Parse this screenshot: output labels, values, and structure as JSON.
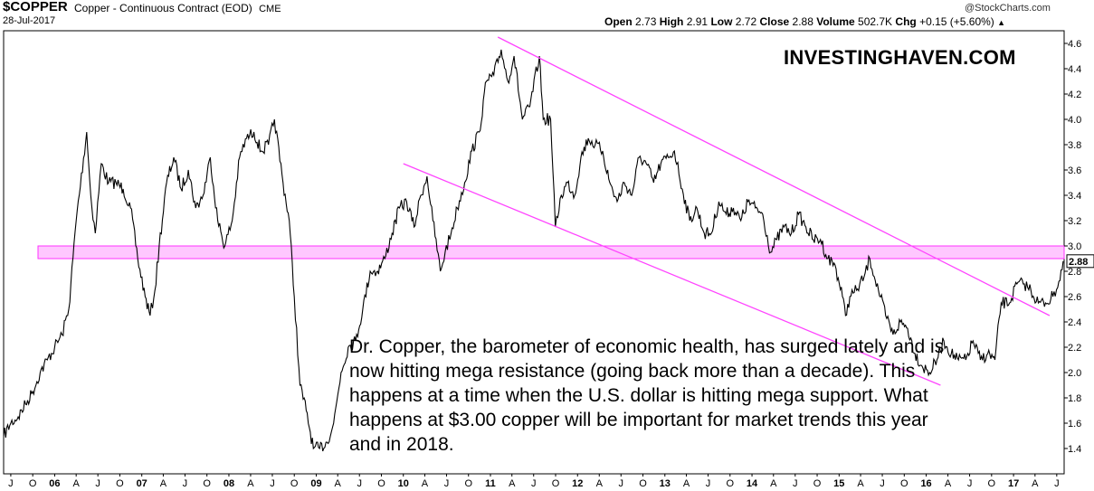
{
  "header": {
    "symbol": "$COPPER",
    "description": "Copper - Continuous Contract (EOD)",
    "exchange": "CME",
    "date": "28-Jul-2017",
    "credit": "@StockCharts.com",
    "quote": {
      "open_label": "Open",
      "open": "2.73",
      "high_label": "High",
      "high": "2.91",
      "low_label": "Low",
      "low": "2.72",
      "close_label": "Close",
      "close": "2.88",
      "volume_label": "Volume",
      "volume": "502.7K",
      "chg_label": "Chg",
      "chg": "+0.15 (+5.60%)",
      "arrow": "▲"
    }
  },
  "watermark": "INVESTINGHAVEN.COM",
  "annotation": "Dr. Copper, the barometer of economic health, has surged lately and is now hitting mega resistance (going back more than a decade). This happens at a time when the U.S. dollar is hitting mega support. What happens at $3.00 copper will be important for market trends this year and in 2018.",
  "chart_data": {
    "type": "line",
    "ylim": [
      1.2,
      4.7
    ],
    "xlim": [
      "2005-06-01",
      "2017-08-01"
    ],
    "y_ticks": [
      "1.4",
      "1.6",
      "1.8",
      "2.0",
      "2.2",
      "2.4",
      "2.6",
      "2.8",
      "3.0",
      "3.2",
      "3.4",
      "3.6",
      "3.8",
      "4.0",
      "4.2",
      "4.4",
      "4.6"
    ],
    "last_value_label": "2.88",
    "x_ticks": [
      {
        "label": "J",
        "date": "2005-07-01"
      },
      {
        "label": "O",
        "date": "2005-10-01"
      },
      {
        "label": "06",
        "date": "2006-01-01",
        "major": true
      },
      {
        "label": "A",
        "date": "2006-04-01"
      },
      {
        "label": "J",
        "date": "2006-07-01"
      },
      {
        "label": "O",
        "date": "2006-10-01"
      },
      {
        "label": "07",
        "date": "2007-01-01",
        "major": true
      },
      {
        "label": "A",
        "date": "2007-04-01"
      },
      {
        "label": "J",
        "date": "2007-07-01"
      },
      {
        "label": "O",
        "date": "2007-10-01"
      },
      {
        "label": "08",
        "date": "2008-01-01",
        "major": true
      },
      {
        "label": "A",
        "date": "2008-04-01"
      },
      {
        "label": "J",
        "date": "2008-07-01"
      },
      {
        "label": "O",
        "date": "2008-10-01"
      },
      {
        "label": "09",
        "date": "2009-01-01",
        "major": true
      },
      {
        "label": "A",
        "date": "2009-04-01"
      },
      {
        "label": "J",
        "date": "2009-07-01"
      },
      {
        "label": "O",
        "date": "2009-10-01"
      },
      {
        "label": "10",
        "date": "2010-01-01",
        "major": true
      },
      {
        "label": "A",
        "date": "2010-04-01"
      },
      {
        "label": "J",
        "date": "2010-07-01"
      },
      {
        "label": "O",
        "date": "2010-10-01"
      },
      {
        "label": "11",
        "date": "2011-01-01",
        "major": true
      },
      {
        "label": "A",
        "date": "2011-04-01"
      },
      {
        "label": "J",
        "date": "2011-07-01"
      },
      {
        "label": "O",
        "date": "2011-10-01"
      },
      {
        "label": "12",
        "date": "2012-01-01",
        "major": true
      },
      {
        "label": "A",
        "date": "2012-04-01"
      },
      {
        "label": "J",
        "date": "2012-07-01"
      },
      {
        "label": "O",
        "date": "2012-10-01"
      },
      {
        "label": "13",
        "date": "2013-01-01",
        "major": true
      },
      {
        "label": "A",
        "date": "2013-04-01"
      },
      {
        "label": "J",
        "date": "2013-07-01"
      },
      {
        "label": "O",
        "date": "2013-10-01"
      },
      {
        "label": "14",
        "date": "2014-01-01",
        "major": true
      },
      {
        "label": "A",
        "date": "2014-04-01"
      },
      {
        "label": "J",
        "date": "2014-07-01"
      },
      {
        "label": "O",
        "date": "2014-10-01"
      },
      {
        "label": "15",
        "date": "2015-01-01",
        "major": true
      },
      {
        "label": "A",
        "date": "2015-04-01"
      },
      {
        "label": "J",
        "date": "2015-07-01"
      },
      {
        "label": "O",
        "date": "2015-10-01"
      },
      {
        "label": "16",
        "date": "2016-01-01",
        "major": true
      },
      {
        "label": "A",
        "date": "2016-04-01"
      },
      {
        "label": "J",
        "date": "2016-07-01"
      },
      {
        "label": "O",
        "date": "2016-10-01"
      },
      {
        "label": "17",
        "date": "2017-01-01",
        "major": true
      },
      {
        "label": "A",
        "date": "2017-04-01"
      },
      {
        "label": "J",
        "date": "2017-07-01"
      }
    ],
    "series": [
      {
        "points": [
          [
            "2005-06-01",
            1.5
          ],
          [
            "2005-07-01",
            1.6
          ],
          [
            "2005-08-01",
            1.65
          ],
          [
            "2005-09-01",
            1.75
          ],
          [
            "2005-10-01",
            1.85
          ],
          [
            "2005-11-01",
            2.0
          ],
          [
            "2005-12-01",
            2.1
          ],
          [
            "2006-01-01",
            2.2
          ],
          [
            "2006-02-01",
            2.3
          ],
          [
            "2006-03-01",
            2.5
          ],
          [
            "2006-04-01",
            3.2
          ],
          [
            "2006-05-15",
            3.9
          ],
          [
            "2006-06-01",
            3.4
          ],
          [
            "2006-06-20",
            3.1
          ],
          [
            "2006-07-15",
            3.65
          ],
          [
            "2006-08-15",
            3.5
          ],
          [
            "2006-09-15",
            3.5
          ],
          [
            "2006-10-15",
            3.45
          ],
          [
            "2006-11-15",
            3.3
          ],
          [
            "2006-12-15",
            2.9
          ],
          [
            "2007-01-15",
            2.6
          ],
          [
            "2007-02-05",
            2.45
          ],
          [
            "2007-02-25",
            2.65
          ],
          [
            "2007-03-15",
            3.0
          ],
          [
            "2007-04-15",
            3.5
          ],
          [
            "2007-05-15",
            3.7
          ],
          [
            "2007-06-15",
            3.45
          ],
          [
            "2007-07-15",
            3.6
          ],
          [
            "2007-08-15",
            3.3
          ],
          [
            "2007-09-15",
            3.4
          ],
          [
            "2007-10-15",
            3.7
          ],
          [
            "2007-11-15",
            3.2
          ],
          [
            "2007-12-15",
            3.0
          ],
          [
            "2008-01-15",
            3.2
          ],
          [
            "2008-02-15",
            3.7
          ],
          [
            "2008-03-15",
            3.85
          ],
          [
            "2008-04-15",
            3.9
          ],
          [
            "2008-05-15",
            3.75
          ],
          [
            "2008-06-15",
            3.8
          ],
          [
            "2008-07-10",
            4.0
          ],
          [
            "2008-08-15",
            3.5
          ],
          [
            "2008-09-10",
            3.2
          ],
          [
            "2008-10-01",
            2.6
          ],
          [
            "2008-10-25",
            1.9
          ],
          [
            "2008-11-20",
            1.7
          ],
          [
            "2008-12-20",
            1.4
          ],
          [
            "2009-01-15",
            1.4
          ],
          [
            "2009-02-15",
            1.45
          ],
          [
            "2009-03-15",
            1.6
          ],
          [
            "2009-04-15",
            2.0
          ],
          [
            "2009-05-15",
            2.2
          ],
          [
            "2009-06-15",
            2.25
          ],
          [
            "2009-07-15",
            2.5
          ],
          [
            "2009-08-15",
            2.8
          ],
          [
            "2009-09-15",
            2.8
          ],
          [
            "2009-10-15",
            2.9
          ],
          [
            "2009-11-15",
            3.1
          ],
          [
            "2009-12-15",
            3.3
          ],
          [
            "2010-01-15",
            3.35
          ],
          [
            "2010-02-15",
            3.15
          ],
          [
            "2010-03-15",
            3.4
          ],
          [
            "2010-04-10",
            3.55
          ],
          [
            "2010-05-05",
            3.2
          ],
          [
            "2010-06-05",
            2.8
          ],
          [
            "2010-06-25",
            2.95
          ],
          [
            "2010-07-20",
            3.1
          ],
          [
            "2010-08-15",
            3.3
          ],
          [
            "2010-09-15",
            3.5
          ],
          [
            "2010-10-15",
            3.75
          ],
          [
            "2010-11-15",
            3.9
          ],
          [
            "2010-12-15",
            4.3
          ],
          [
            "2011-01-15",
            4.35
          ],
          [
            "2011-02-15",
            4.55
          ],
          [
            "2011-03-15",
            4.3
          ],
          [
            "2011-04-10",
            4.5
          ],
          [
            "2011-05-15",
            4.0
          ],
          [
            "2011-06-15",
            4.1
          ],
          [
            "2011-07-25",
            4.5
          ],
          [
            "2011-08-10",
            4.0
          ],
          [
            "2011-09-10",
            4.0
          ],
          [
            "2011-09-30",
            3.15
          ],
          [
            "2011-10-25",
            3.4
          ],
          [
            "2011-11-20",
            3.5
          ],
          [
            "2011-12-20",
            3.4
          ],
          [
            "2012-01-15",
            3.7
          ],
          [
            "2012-02-15",
            3.85
          ],
          [
            "2012-03-15",
            3.8
          ],
          [
            "2012-04-15",
            3.75
          ],
          [
            "2012-05-15",
            3.5
          ],
          [
            "2012-06-15",
            3.35
          ],
          [
            "2012-07-15",
            3.5
          ],
          [
            "2012-08-15",
            3.4
          ],
          [
            "2012-09-15",
            3.7
          ],
          [
            "2012-10-15",
            3.65
          ],
          [
            "2012-11-15",
            3.5
          ],
          [
            "2012-12-15",
            3.65
          ],
          [
            "2013-01-15",
            3.7
          ],
          [
            "2013-02-10",
            3.75
          ],
          [
            "2013-03-15",
            3.45
          ],
          [
            "2013-04-15",
            3.2
          ],
          [
            "2013-05-15",
            3.3
          ],
          [
            "2013-06-15",
            3.1
          ],
          [
            "2013-07-15",
            3.1
          ],
          [
            "2013-08-15",
            3.35
          ],
          [
            "2013-09-15",
            3.25
          ],
          [
            "2013-10-15",
            3.3
          ],
          [
            "2013-11-15",
            3.2
          ],
          [
            "2013-12-15",
            3.35
          ],
          [
            "2014-01-15",
            3.3
          ],
          [
            "2014-02-15",
            3.25
          ],
          [
            "2014-03-20",
            2.95
          ],
          [
            "2014-04-15",
            3.05
          ],
          [
            "2014-05-15",
            3.15
          ],
          [
            "2014-06-15",
            3.1
          ],
          [
            "2014-07-15",
            3.25
          ],
          [
            "2014-08-15",
            3.15
          ],
          [
            "2014-09-15",
            3.05
          ],
          [
            "2014-10-15",
            3.05
          ],
          [
            "2014-11-15",
            2.9
          ],
          [
            "2014-12-15",
            2.85
          ],
          [
            "2015-01-15",
            2.6
          ],
          [
            "2015-01-28",
            2.45
          ],
          [
            "2015-02-15",
            2.6
          ],
          [
            "2015-03-15",
            2.65
          ],
          [
            "2015-04-15",
            2.75
          ],
          [
            "2015-05-10",
            2.9
          ],
          [
            "2015-06-15",
            2.65
          ],
          [
            "2015-07-15",
            2.45
          ],
          [
            "2015-08-15",
            2.3
          ],
          [
            "2015-09-15",
            2.4
          ],
          [
            "2015-10-15",
            2.35
          ],
          [
            "2015-11-15",
            2.15
          ],
          [
            "2015-12-15",
            2.05
          ],
          [
            "2016-01-15",
            2.0
          ],
          [
            "2016-02-15",
            2.1
          ],
          [
            "2016-03-15",
            2.25
          ],
          [
            "2016-04-15",
            2.15
          ],
          [
            "2016-05-15",
            2.1
          ],
          [
            "2016-06-15",
            2.1
          ],
          [
            "2016-07-15",
            2.25
          ],
          [
            "2016-08-15",
            2.1
          ],
          [
            "2016-09-15",
            2.15
          ],
          [
            "2016-10-15",
            2.1
          ],
          [
            "2016-11-10",
            2.55
          ],
          [
            "2016-12-15",
            2.55
          ],
          [
            "2017-01-15",
            2.7
          ],
          [
            "2017-02-15",
            2.7
          ],
          [
            "2017-03-15",
            2.65
          ],
          [
            "2017-04-15",
            2.55
          ],
          [
            "2017-05-15",
            2.55
          ],
          [
            "2017-06-15",
            2.6
          ],
          [
            "2017-07-10",
            2.72
          ],
          [
            "2017-07-28",
            2.88
          ]
        ]
      }
    ],
    "resistance_band": {
      "from": 2.9,
      "to": 3.0,
      "color": "#ff99ff"
    },
    "trendlines": [
      {
        "from": [
          "2011-02-01",
          4.65
        ],
        "to": [
          "2017-06-01",
          2.45
        ],
        "color": "#ff44ff"
      },
      {
        "from": [
          "2010-01-01",
          3.65
        ],
        "to": [
          "2016-03-01",
          1.9
        ],
        "color": "#ff44ff"
      }
    ],
    "grid": false
  }
}
